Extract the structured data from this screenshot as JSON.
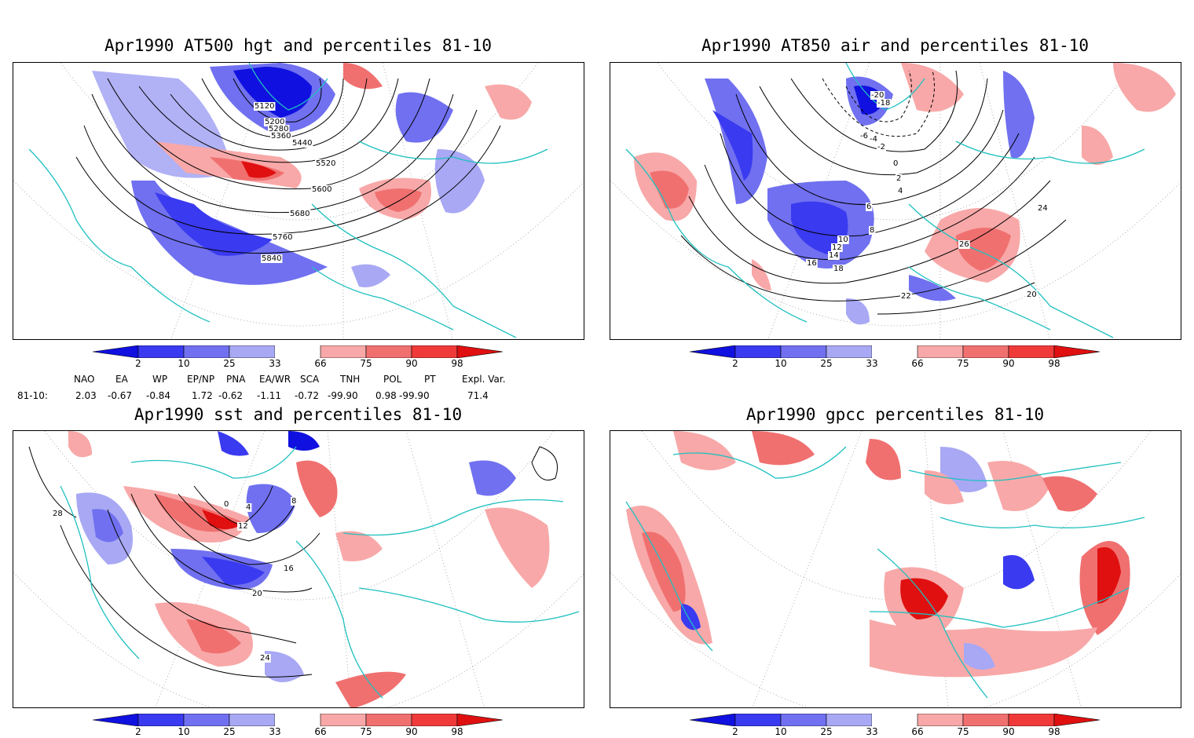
{
  "panels": [
    {
      "title": "Apr1990 AT500 hgt and percentiles 81-10",
      "contour_labels": [
        "5120",
        "5200",
        "5280",
        "5360",
        "5440",
        "5520",
        "5600",
        "5680",
        "5760",
        "5840"
      ]
    },
    {
      "title": "Apr1990 AT850 air and percentiles 81-10",
      "contour_labels": [
        "-20",
        "-18",
        "-4",
        "-6",
        "-2",
        "0",
        "2",
        "4",
        "6",
        "8",
        "10",
        "12",
        "14",
        "16",
        "18",
        "20",
        "22",
        "24",
        "26"
      ]
    },
    {
      "title": "Apr1990 sst and percentiles 81-10",
      "contour_labels": [
        "0",
        "4",
        "8",
        "12",
        "16",
        "20",
        "24",
        "28"
      ]
    },
    {
      "title": "Apr1990 gpcc percentiles 81-10"
    }
  ],
  "colorbar": {
    "labels": [
      "2",
      "10",
      "25",
      "33",
      "66",
      "75",
      "90",
      "98"
    ],
    "colors": [
      "#1010e0",
      "#3a3af0",
      "#7070f0",
      "#a8a8f4",
      "#ffffff",
      "#f8a8a8",
      "#f07070",
      "#f03a3a",
      "#e01010"
    ]
  },
  "indices": {
    "headers": [
      "NAO",
      "EA",
      "WP",
      "EP/NP",
      "PNA",
      "EA/WR",
      "SCA",
      "TNH",
      "POL",
      "PT",
      "Expl. Var."
    ],
    "row_label": "81-10:",
    "values": [
      "2.03",
      "-0.67",
      "-0.84",
      "1.72",
      "-0.62",
      "-1.11",
      "-0.72",
      "-99.90",
      "0.98",
      "-99.90",
      "71.4"
    ]
  },
  "style": {
    "coast_color": "#20c0c0",
    "contour_color": "#000000",
    "grid_color": "#999999"
  }
}
